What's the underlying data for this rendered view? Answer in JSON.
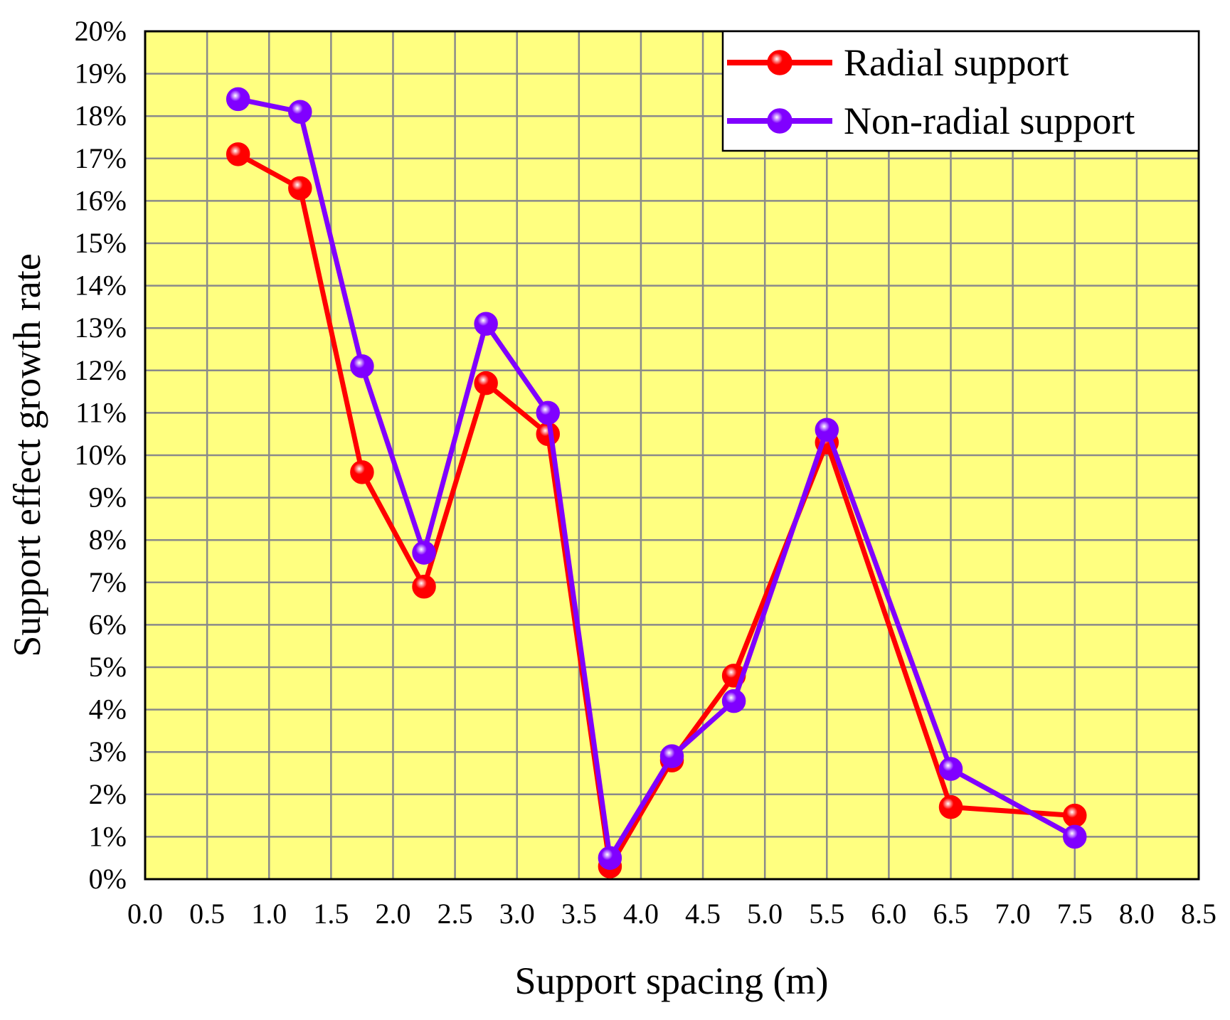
{
  "chart_data": {
    "type": "line",
    "title": "",
    "xlabel": "Support spacing (m)",
    "ylabel": "Support effect growth rate",
    "xlim": [
      0.0,
      8.5
    ],
    "ylim": [
      0,
      20
    ],
    "x_ticks": [
      "0.0",
      "0.5",
      "1.0",
      "1.5",
      "2.0",
      "2.5",
      "3.0",
      "3.5",
      "4.0",
      "4.5",
      "5.0",
      "5.5",
      "6.0",
      "6.5",
      "7.0",
      "7.5",
      "8.0",
      "8.5"
    ],
    "y_ticks": [
      "0%",
      "1%",
      "2%",
      "3%",
      "4%",
      "5%",
      "6%",
      "7%",
      "8%",
      "9%",
      "10%",
      "11%",
      "12%",
      "13%",
      "14%",
      "15%",
      "16%",
      "17%",
      "18%",
      "19%",
      "20%"
    ],
    "grid": true,
    "legend_position": "top-right",
    "plot_background": "#ffff80",
    "series": [
      {
        "name": "Radial support",
        "color": "#ff0000",
        "x": [
          0.75,
          1.25,
          1.75,
          2.25,
          2.75,
          3.25,
          3.75,
          4.25,
          4.75,
          5.5,
          6.5,
          7.5
        ],
        "y": [
          17.1,
          16.3,
          9.6,
          6.9,
          11.7,
          10.5,
          0.3,
          2.8,
          4.8,
          10.3,
          1.7,
          1.5
        ]
      },
      {
        "name": "Non-radial support",
        "color": "#8000ff",
        "x": [
          0.75,
          1.25,
          1.75,
          2.25,
          2.75,
          3.25,
          3.75,
          4.25,
          4.75,
          5.5,
          6.5,
          7.5
        ],
        "y": [
          18.4,
          18.1,
          12.1,
          7.7,
          13.1,
          11.0,
          0.5,
          2.9,
          4.2,
          10.6,
          2.6,
          1.0
        ]
      }
    ]
  }
}
